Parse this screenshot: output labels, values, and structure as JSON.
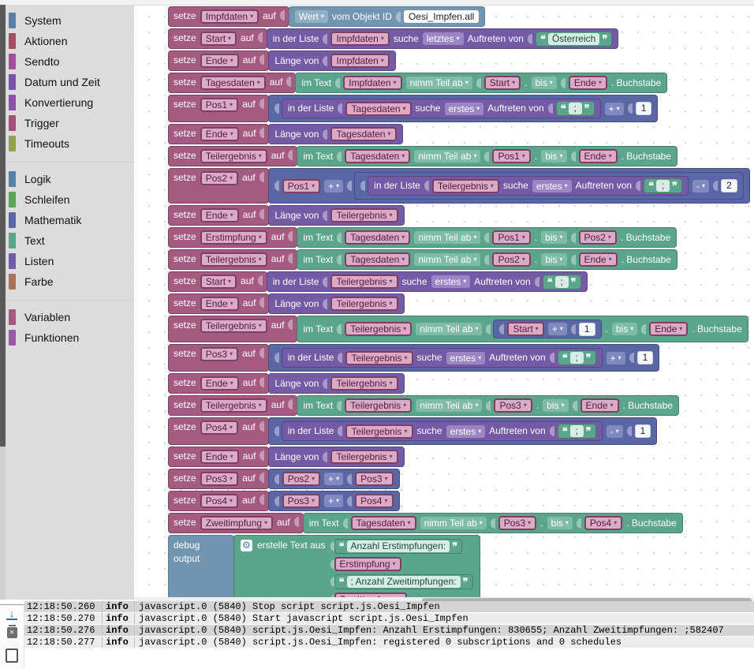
{
  "labels": {
    "set": "setze",
    "to": "auf"
  },
  "sidebar": {
    "groups": [
      [
        {
          "label": "System",
          "color": "#5b80a5"
        },
        {
          "label": "Aktionen",
          "color": "#a34f63"
        },
        {
          "label": "Sendto",
          "color": "#a3509c"
        },
        {
          "label": "Datum und Zeit",
          "color": "#7b52a8"
        },
        {
          "label": "Konvertierung",
          "color": "#8b52a8"
        },
        {
          "label": "Trigger",
          "color": "#a5507a"
        },
        {
          "label": "Timeouts",
          "color": "#93a14f"
        }
      ],
      [
        {
          "label": "Logik",
          "color": "#5b80a5"
        },
        {
          "label": "Schleifen",
          "color": "#5ba55b"
        },
        {
          "label": "Mathematik",
          "color": "#5b67a5"
        },
        {
          "label": "Text",
          "color": "#5ba58c"
        },
        {
          "label": "Listen",
          "color": "#745ba5"
        },
        {
          "label": "Farbe",
          "color": "#a5745b"
        }
      ],
      [
        {
          "label": "Variablen",
          "color": "#a55b80"
        },
        {
          "label": "Funktionen",
          "color": "#9a5ba5"
        }
      ]
    ]
  },
  "workspace": {
    "rows": [
      {
        "var": "Impfdaten",
        "value": {
          "t": "blk",
          "c": "sys",
          "parts": [
            {
              "t": "dd",
              "s": "Wert"
            },
            {
              "t": "lbl",
              "s": "vom Objekt ID"
            },
            {
              "t": "inp",
              "s": "Oesi_Impfen.all"
            }
          ]
        }
      },
      {
        "var": "Start",
        "value": {
          "t": "blk",
          "c": "list",
          "parts": [
            {
              "t": "lbl",
              "s": "in der Liste"
            },
            {
              "t": "var",
              "s": "Impfdaten"
            },
            {
              "t": "lbl",
              "s": "suche"
            },
            {
              "t": "dd",
              "s": "letztes"
            },
            {
              "t": "lbl",
              "s": "Auftreten von"
            },
            {
              "t": "str",
              "s": "Österreich"
            }
          ]
        }
      },
      {
        "var": "Ende",
        "value": {
          "t": "blk",
          "c": "list",
          "parts": [
            {
              "t": "lbl",
              "s": "Länge von"
            },
            {
              "t": "var",
              "s": "Impfdaten"
            }
          ]
        }
      },
      {
        "var": "Tagesdaten",
        "value": {
          "t": "blk",
          "c": "txt",
          "parts": [
            {
              "t": "lbl",
              "s": "im Text"
            },
            {
              "t": "var",
              "s": "Impfdaten"
            },
            {
              "t": "dd",
              "s": "nimm Teil ab"
            },
            {
              "t": "var",
              "s": "Start"
            },
            {
              "t": "lbl",
              "s": "."
            },
            {
              "t": "dd",
              "s": "bis"
            },
            {
              "t": "var",
              "s": "Ende"
            },
            {
              "t": "lbl",
              "s": ". Buchstabe"
            }
          ]
        }
      },
      {
        "var": "Pos1",
        "value": {
          "t": "blk",
          "c": "math",
          "parts": [
            {
              "t": "blk",
              "c": "list",
              "parts": [
                {
                  "t": "lbl",
                  "s": "in der Liste"
                },
                {
                  "t": "var",
                  "s": "Tagesdaten"
                },
                {
                  "t": "lbl",
                  "s": "suche"
                },
                {
                  "t": "dd",
                  "s": "erstes"
                },
                {
                  "t": "lbl",
                  "s": "Auftreten von"
                },
                {
                  "t": "str",
                  "s": ";"
                }
              ]
            },
            {
              "t": "dd",
              "s": "+"
            },
            {
              "t": "num",
              "s": "1"
            }
          ]
        }
      },
      {
        "var": "Ende",
        "value": {
          "t": "blk",
          "c": "list",
          "parts": [
            {
              "t": "lbl",
              "s": "Länge von"
            },
            {
              "t": "var",
              "s": "Tagesdaten"
            }
          ]
        }
      },
      {
        "var": "Teilergebnis",
        "value": {
          "t": "blk",
          "c": "txt",
          "parts": [
            {
              "t": "lbl",
              "s": "im Text"
            },
            {
              "t": "var",
              "s": "Tagesdaten"
            },
            {
              "t": "dd",
              "s": "nimm Teil ab"
            },
            {
              "t": "var",
              "s": "Pos1"
            },
            {
              "t": "lbl",
              "s": "."
            },
            {
              "t": "dd",
              "s": "bis"
            },
            {
              "t": "var",
              "s": "Ende"
            },
            {
              "t": "lbl",
              "s": ". Buchstabe"
            }
          ]
        }
      },
      {
        "var": "Pos2",
        "value": {
          "t": "blk",
          "c": "math",
          "parts": [
            {
              "t": "var",
              "s": "Pos1"
            },
            {
              "t": "dd",
              "s": "+"
            },
            {
              "t": "blk",
              "c": "math",
              "parts": [
                {
                  "t": "blk",
                  "c": "list",
                  "parts": [
                    {
                      "t": "lbl",
                      "s": "in der Liste"
                    },
                    {
                      "t": "var",
                      "s": "Teilergebnis"
                    },
                    {
                      "t": "lbl",
                      "s": "suche"
                    },
                    {
                      "t": "dd",
                      "s": "erstes"
                    },
                    {
                      "t": "lbl",
                      "s": "Auftreten von"
                    },
                    {
                      "t": "str",
                      "s": ";"
                    }
                  ]
                },
                {
                  "t": "dd",
                  "s": "-"
                },
                {
                  "t": "num",
                  "s": "2"
                }
              ]
            }
          ]
        }
      },
      {
        "var": "Ende",
        "value": {
          "t": "blk",
          "c": "list",
          "parts": [
            {
              "t": "lbl",
              "s": "Länge von"
            },
            {
              "t": "var",
              "s": "Teilergebnis"
            }
          ]
        }
      },
      {
        "var": "Erstimpfung",
        "value": {
          "t": "blk",
          "c": "txt",
          "parts": [
            {
              "t": "lbl",
              "s": "im Text"
            },
            {
              "t": "var",
              "s": "Tagesdaten"
            },
            {
              "t": "dd",
              "s": "nimm Teil ab"
            },
            {
              "t": "var",
              "s": "Pos1"
            },
            {
              "t": "lbl",
              "s": "."
            },
            {
              "t": "dd",
              "s": "bis"
            },
            {
              "t": "var",
              "s": "Pos2"
            },
            {
              "t": "lbl",
              "s": ". Buchstabe"
            }
          ]
        }
      },
      {
        "var": "Teilergebnis",
        "value": {
          "t": "blk",
          "c": "txt",
          "parts": [
            {
              "t": "lbl",
              "s": "im Text"
            },
            {
              "t": "var",
              "s": "Tagesdaten"
            },
            {
              "t": "dd",
              "s": "nimm Teil ab"
            },
            {
              "t": "var",
              "s": "Pos2"
            },
            {
              "t": "lbl",
              "s": "."
            },
            {
              "t": "dd",
              "s": "bis"
            },
            {
              "t": "var",
              "s": "Ende"
            },
            {
              "t": "lbl",
              "s": ". Buchstabe"
            }
          ]
        }
      },
      {
        "var": "Start",
        "value": {
          "t": "blk",
          "c": "list",
          "parts": [
            {
              "t": "lbl",
              "s": "in der Liste"
            },
            {
              "t": "var",
              "s": "Teilergebnis"
            },
            {
              "t": "lbl",
              "s": "suche"
            },
            {
              "t": "dd",
              "s": "erstes"
            },
            {
              "t": "lbl",
              "s": "Auftreten von"
            },
            {
              "t": "str",
              "s": ";"
            }
          ]
        }
      },
      {
        "var": "Ende",
        "value": {
          "t": "blk",
          "c": "list",
          "parts": [
            {
              "t": "lbl",
              "s": "Länge von"
            },
            {
              "t": "var",
              "s": "Teilergebnis"
            }
          ]
        }
      },
      {
        "var": "Teilergebnis",
        "value": {
          "t": "blk",
          "c": "txt",
          "parts": [
            {
              "t": "lbl",
              "s": "im Text"
            },
            {
              "t": "var",
              "s": "Teilergebnis"
            },
            {
              "t": "dd",
              "s": "nimm Teil ab"
            },
            {
              "t": "blk",
              "c": "math",
              "parts": [
                {
                  "t": "var",
                  "s": "Start"
                },
                {
                  "t": "dd",
                  "s": "+"
                },
                {
                  "t": "num",
                  "s": "1"
                }
              ]
            },
            {
              "t": "lbl",
              "s": "."
            },
            {
              "t": "dd",
              "s": "bis"
            },
            {
              "t": "var",
              "s": "Ende"
            },
            {
              "t": "lbl",
              "s": ". Buchstabe"
            }
          ]
        }
      },
      {
        "var": "Pos3",
        "value": {
          "t": "blk",
          "c": "math",
          "parts": [
            {
              "t": "blk",
              "c": "list",
              "parts": [
                {
                  "t": "lbl",
                  "s": "in der Liste"
                },
                {
                  "t": "var",
                  "s": "Teilergebnis"
                },
                {
                  "t": "lbl",
                  "s": "suche"
                },
                {
                  "t": "dd",
                  "s": "erstes"
                },
                {
                  "t": "lbl",
                  "s": "Auftreten von"
                },
                {
                  "t": "str",
                  "s": ";"
                }
              ]
            },
            {
              "t": "dd",
              "s": "+"
            },
            {
              "t": "num",
              "s": "1"
            }
          ]
        }
      },
      {
        "var": "Ende",
        "value": {
          "t": "blk",
          "c": "list",
          "parts": [
            {
              "t": "lbl",
              "s": "Länge von"
            },
            {
              "t": "var",
              "s": "Teilergebnis"
            }
          ]
        }
      },
      {
        "var": "Teilergebnis",
        "value": {
          "t": "blk",
          "c": "txt",
          "parts": [
            {
              "t": "lbl",
              "s": "im Text"
            },
            {
              "t": "var",
              "s": "Teilergebnis"
            },
            {
              "t": "dd",
              "s": "nimm Teil ab"
            },
            {
              "t": "var",
              "s": "Pos3"
            },
            {
              "t": "lbl",
              "s": "."
            },
            {
              "t": "dd",
              "s": "bis"
            },
            {
              "t": "var",
              "s": "Ende"
            },
            {
              "t": "lbl",
              "s": ". Buchstabe"
            }
          ]
        }
      },
      {
        "var": "Pos4",
        "value": {
          "t": "blk",
          "c": "math",
          "parts": [
            {
              "t": "blk",
              "c": "list",
              "parts": [
                {
                  "t": "lbl",
                  "s": "in der Liste"
                },
                {
                  "t": "var",
                  "s": "Teilergebnis"
                },
                {
                  "t": "lbl",
                  "s": "suche"
                },
                {
                  "t": "dd",
                  "s": "erstes"
                },
                {
                  "t": "lbl",
                  "s": "Auftreten von"
                },
                {
                  "t": "str",
                  "s": ";"
                }
              ]
            },
            {
              "t": "dd",
              "s": "-"
            },
            {
              "t": "num",
              "s": "1"
            }
          ]
        }
      },
      {
        "var": "Ende",
        "value": {
          "t": "blk",
          "c": "list",
          "parts": [
            {
              "t": "lbl",
              "s": "Länge von"
            },
            {
              "t": "var",
              "s": "Teilergebnis"
            }
          ]
        }
      },
      {
        "var": "Pos3",
        "value": {
          "t": "blk",
          "c": "math",
          "parts": [
            {
              "t": "var",
              "s": "Pos2"
            },
            {
              "t": "dd",
              "s": "+"
            },
            {
              "t": "var",
              "s": "Pos3"
            }
          ]
        }
      },
      {
        "var": "Pos4",
        "value": {
          "t": "blk",
          "c": "math",
          "parts": [
            {
              "t": "var",
              "s": "Pos3"
            },
            {
              "t": "dd",
              "s": "+"
            },
            {
              "t": "var",
              "s": "Pos4"
            }
          ]
        }
      },
      {
        "var": "Zweitimpfung",
        "value": {
          "t": "blk",
          "c": "txt",
          "parts": [
            {
              "t": "lbl",
              "s": "im Text"
            },
            {
              "t": "var",
              "s": "Tagesdaten"
            },
            {
              "t": "dd",
              "s": "nimm Teil ab"
            },
            {
              "t": "var",
              "s": "Pos3"
            },
            {
              "t": "lbl",
              "s": "."
            },
            {
              "t": "dd",
              "s": "bis"
            },
            {
              "t": "var",
              "s": "Pos4"
            },
            {
              "t": "lbl",
              "s": ". Buchstabe"
            }
          ]
        }
      }
    ],
    "debug": {
      "label": "debug output",
      "mode": "info",
      "create_label": "erstelle Text aus",
      "items": [
        {
          "t": "str",
          "s": "Anzahl Erstimpfungen: "
        },
        {
          "t": "var",
          "s": "Erstimpfung"
        },
        {
          "t": "str",
          "s": "; Anzahl Zweitimpfungen: "
        },
        {
          "t": "var",
          "s": "Zweitimpfung"
        }
      ]
    }
  },
  "log": {
    "rows": [
      {
        "time": "12:18:50.260",
        "level": "info",
        "source": "javascript.0 (5840)",
        "message": "Stop script script.js.Oesi_Impfen"
      },
      {
        "time": "12:18:50.270",
        "level": "info",
        "source": "javascript.0 (5840)",
        "message": "Start javascript script.js.Oesi_Impfen"
      },
      {
        "time": "12:18:50.276",
        "level": "info",
        "source": "javascript.0 (5840)",
        "message": "script.js.Oesi_Impfen: Anzahl Erstimpfungen: 830655; Anzahl Zweitimpfungen: ;582407"
      },
      {
        "time": "12:18:50.277",
        "level": "info",
        "source": "javascript.0 (5840)",
        "message": "script.js.Oesi_Impfen: registered 0 subscriptions and 0 schedules"
      }
    ]
  }
}
